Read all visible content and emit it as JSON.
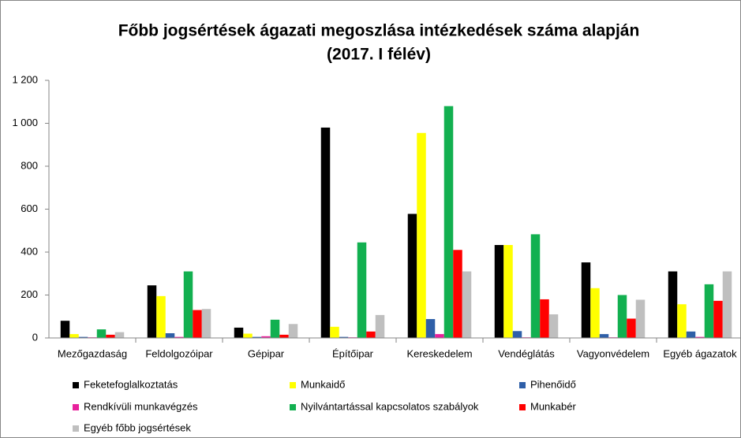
{
  "chart_data": {
    "type": "bar",
    "title": "Főbb jogsértések ágazati megoszlása intézkedések száma alapján",
    "subtitle": "(2017. I félév)",
    "categories": [
      "Mezőgazdaság",
      "Feldolgozóipar",
      "Gépipar",
      "Építőipar",
      "Kereskedelem",
      "Vendéglátás",
      "Vagyonvédelem",
      "Egyéb ágazatok"
    ],
    "series": [
      {
        "name": "Feketefoglalkoztatás",
        "color": "#000000",
        "values": [
          80,
          245,
          48,
          980,
          578,
          433,
          352,
          310
        ]
      },
      {
        "name": "Munkaidő",
        "color": "#ffff00",
        "values": [
          18,
          195,
          20,
          52,
          955,
          433,
          232,
          157
        ]
      },
      {
        "name": "Pihenőidő",
        "color": "#2f5fa8",
        "values": [
          5,
          22,
          5,
          5,
          88,
          32,
          18,
          30
        ]
      },
      {
        "name": "Rendkívüli munkavégzés",
        "color": "#e8219c",
        "values": [
          3,
          5,
          8,
          3,
          18,
          3,
          3,
          5
        ]
      },
      {
        "name": "Nyilvántartással kapcsolatos szabályok",
        "color": "#12b050",
        "values": [
          40,
          310,
          85,
          445,
          1080,
          483,
          200,
          250
        ]
      },
      {
        "name": "Munkabér",
        "color": "#ff0000",
        "values": [
          15,
          130,
          15,
          30,
          410,
          180,
          90,
          173
        ]
      },
      {
        "name": "Egyéb főbb jogsértések",
        "color": "#bfbfbf",
        "values": [
          27,
          135,
          65,
          107,
          310,
          110,
          178,
          310
        ]
      }
    ],
    "ylim": [
      0,
      1200
    ],
    "yticks": [
      0,
      200,
      400,
      600,
      800,
      {
        "value": 1000,
        "label": "1 000"
      },
      {
        "value": 1200,
        "label": "1 200"
      }
    ],
    "grid": false
  }
}
